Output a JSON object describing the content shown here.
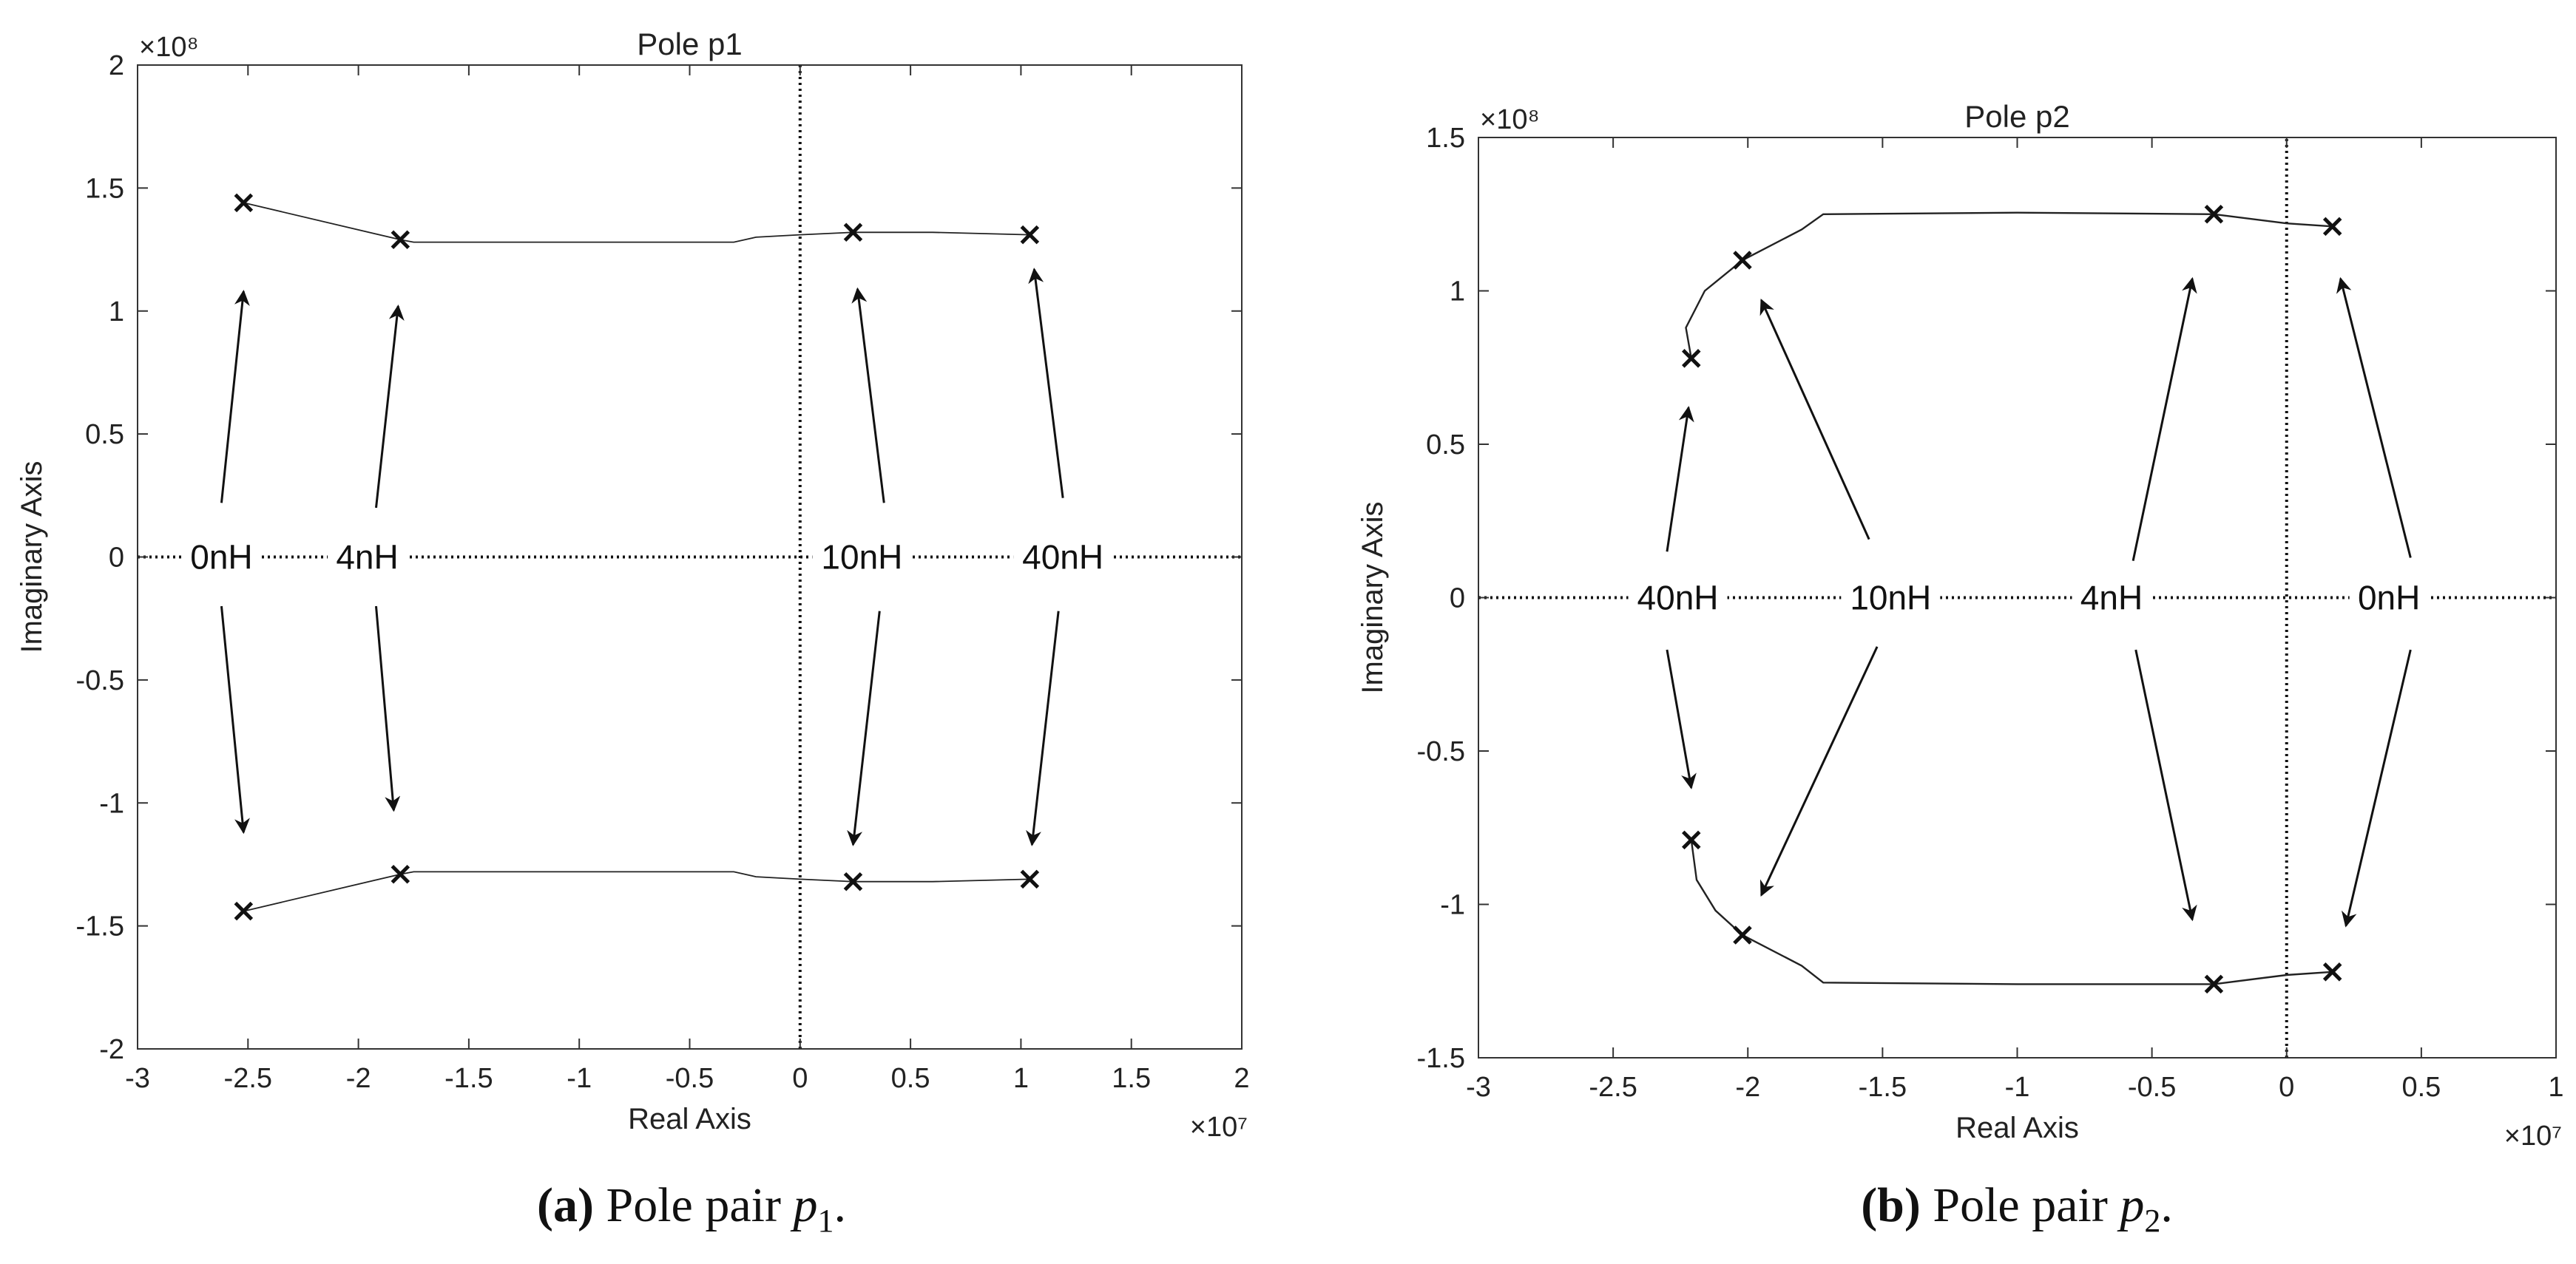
{
  "chart_data": [
    {
      "type": "scatter",
      "title": "Pole p1",
      "xlabel": "Real Axis",
      "ylabel": "Imaginary Axis",
      "x_exponent": "×10⁷",
      "y_exponent": "×10⁸",
      "xlim": [
        -3,
        2
      ],
      "ylim": [
        -2,
        2
      ],
      "xticks": [
        -3,
        -2.5,
        -2,
        -1.5,
        -1,
        -0.5,
        0,
        0.5,
        1,
        1.5,
        2
      ],
      "yticks": [
        -2,
        -1.5,
        -1,
        -0.5,
        0,
        0.5,
        1,
        1.5,
        2
      ],
      "grid": false,
      "caption": {
        "label": "(a)",
        "text": " Pole pair ",
        "var": "p",
        "sub": "1",
        "end": "."
      },
      "markers": [
        {
          "x": -2.52,
          "y": 1.44
        },
        {
          "x": -1.81,
          "y": 1.29
        },
        {
          "x": 0.24,
          "y": 1.32
        },
        {
          "x": 1.04,
          "y": 1.31
        },
        {
          "x": -2.52,
          "y": -1.44
        },
        {
          "x": -1.81,
          "y": -1.29
        },
        {
          "x": 0.24,
          "y": -1.32
        },
        {
          "x": 1.04,
          "y": -1.31
        }
      ],
      "locus_upper": [
        [
          -2.52,
          1.44
        ],
        [
          -1.81,
          1.29
        ],
        [
          -1.75,
          1.28
        ],
        [
          -1.0,
          1.28
        ],
        [
          -0.3,
          1.28
        ],
        [
          -0.2,
          1.3
        ],
        [
          0.0,
          1.31
        ],
        [
          0.24,
          1.32
        ],
        [
          0.6,
          1.32
        ],
        [
          1.04,
          1.31
        ]
      ],
      "locus_lower": [
        [
          -2.52,
          -1.44
        ],
        [
          -1.81,
          -1.29
        ],
        [
          -1.75,
          -1.28
        ],
        [
          -1.0,
          -1.28
        ],
        [
          -0.3,
          -1.28
        ],
        [
          -0.2,
          -1.3
        ],
        [
          0.0,
          -1.31
        ],
        [
          0.24,
          -1.32
        ],
        [
          0.6,
          -1.32
        ],
        [
          1.04,
          -1.31
        ]
      ],
      "dotted_lines": [
        {
          "x1": -3,
          "y1": 0,
          "x2": 2,
          "y2": 0
        },
        {
          "x1": 0,
          "y1": -2,
          "x2": 0,
          "y2": 2
        }
      ],
      "annotations": [
        {
          "text": "0nH",
          "x": -2.62,
          "y": 0,
          "arrows": [
            [
              -2.62,
              0.22,
              -2.52,
              1.08
            ],
            [
              -2.62,
              -0.2,
              -2.52,
              -1.12
            ]
          ]
        },
        {
          "text": "4nH",
          "x": -1.96,
          "y": 0,
          "arrows": [
            [
              -1.92,
              0.2,
              -1.82,
              1.02
            ],
            [
              -1.92,
              -0.2,
              -1.84,
              -1.03
            ]
          ]
        },
        {
          "text": "10nH",
          "x": 0.28,
          "y": 0,
          "arrows": [
            [
              0.38,
              0.22,
              0.26,
              1.09
            ],
            [
              0.36,
              -0.22,
              0.24,
              -1.17
            ]
          ]
        },
        {
          "text": "40nH",
          "x": 1.19,
          "y": 0,
          "arrows": [
            [
              1.19,
              0.24,
              1.06,
              1.17
            ],
            [
              1.17,
              -0.22,
              1.05,
              -1.17
            ]
          ]
        }
      ]
    },
    {
      "type": "scatter",
      "title": "Pole p2",
      "xlabel": "Real Axis",
      "ylabel": "Imaginary Axis",
      "x_exponent": "×10⁷",
      "y_exponent": "×10⁸",
      "xlim": [
        -3,
        1
      ],
      "ylim": [
        -1.5,
        1.5
      ],
      "xticks": [
        -3,
        -2.5,
        -2,
        -1.5,
        -1,
        -0.5,
        0,
        0.5,
        1
      ],
      "yticks": [
        -1.5,
        -1,
        -0.5,
        0,
        0.5,
        1,
        1.5
      ],
      "grid": false,
      "caption": {
        "label": "(b)",
        "text": " Pole pair ",
        "var": "p",
        "sub": "2",
        "end": "."
      },
      "markers": [
        {
          "x": -2.21,
          "y": 0.78
        },
        {
          "x": -2.02,
          "y": 1.1
        },
        {
          "x": -0.27,
          "y": 1.25
        },
        {
          "x": 0.17,
          "y": 1.21
        },
        {
          "x": -2.21,
          "y": -0.79
        },
        {
          "x": -2.02,
          "y": -1.1
        },
        {
          "x": -0.27,
          "y": -1.26
        },
        {
          "x": 0.17,
          "y": -1.22
        }
      ],
      "locus_upper": [
        [
          -2.21,
          0.78
        ],
        [
          -2.23,
          0.88
        ],
        [
          -2.16,
          1.0
        ],
        [
          -2.02,
          1.1
        ],
        [
          -1.8,
          1.2
        ],
        [
          -1.72,
          1.25
        ],
        [
          -1.0,
          1.255
        ],
        [
          -0.27,
          1.25
        ],
        [
          0.0,
          1.22
        ],
        [
          0.17,
          1.21
        ]
      ],
      "locus_lower": [
        [
          -2.21,
          -0.79
        ],
        [
          -2.19,
          -0.92
        ],
        [
          -2.12,
          -1.02
        ],
        [
          -2.02,
          -1.1
        ],
        [
          -1.8,
          -1.2
        ],
        [
          -1.72,
          -1.255
        ],
        [
          -1.0,
          -1.26
        ],
        [
          -0.27,
          -1.26
        ],
        [
          0.0,
          -1.23
        ],
        [
          0.17,
          -1.22
        ]
      ],
      "dotted_lines": [
        {
          "x1": -3,
          "y1": 0,
          "x2": 1,
          "y2": 0
        },
        {
          "x1": 0,
          "y1": -1.5,
          "x2": 0,
          "y2": 1.5
        }
      ],
      "annotations": [
        {
          "text": "40nH",
          "x": -2.26,
          "y": 0,
          "arrows": [
            [
              -2.3,
              0.15,
              -2.22,
              0.62
            ],
            [
              -2.3,
              -0.17,
              -2.21,
              -0.62
            ]
          ]
        },
        {
          "text": "10nH",
          "x": -1.47,
          "y": 0,
          "arrows": [
            [
              -1.55,
              0.19,
              -1.95,
              0.97
            ],
            [
              -1.52,
              -0.16,
              -1.95,
              -0.97
            ]
          ]
        },
        {
          "text": "4nH",
          "x": -0.65,
          "y": 0,
          "arrows": [
            [
              -0.57,
              0.12,
              -0.35,
              1.04
            ],
            [
              -0.56,
              -0.17,
              -0.35,
              -1.05
            ]
          ]
        },
        {
          "text": "0nH",
          "x": 0.38,
          "y": 0,
          "arrows": [
            [
              0.46,
              0.13,
              0.2,
              1.04
            ],
            [
              0.46,
              -0.17,
              0.22,
              -1.07
            ]
          ]
        }
      ]
    }
  ]
}
